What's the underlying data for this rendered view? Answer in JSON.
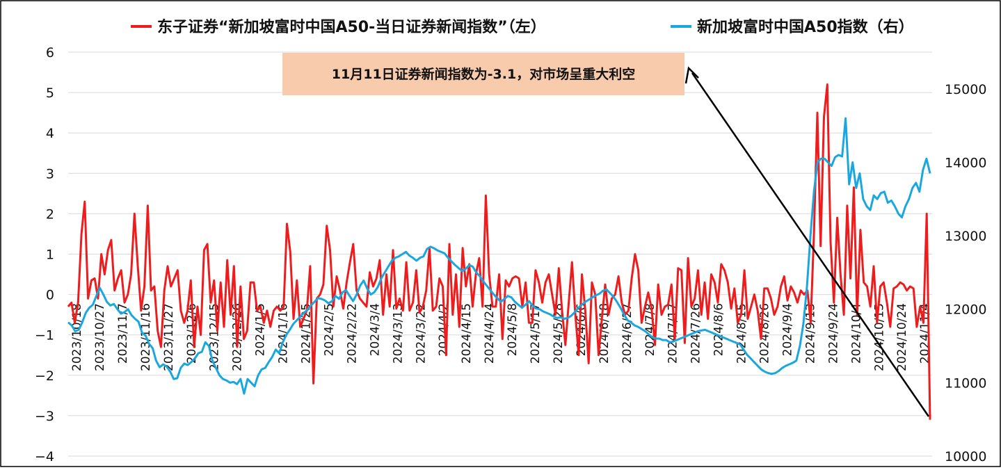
{
  "chart_data": {
    "type": "line",
    "legend": {
      "position": "top"
    },
    "x_tick_labels": [
      "2023/10/18",
      "2023/10/27",
      "2023/11/7",
      "2023/11/16",
      "2023/11/27",
      "2023/12/6",
      "2023/12/15",
      "2023/12/26",
      "2024/1/5",
      "2024/1/16",
      "2024/1/25",
      "2024/2/5",
      "2024/2/22",
      "2024/3/4",
      "2024/3/13",
      "2024/3/22",
      "2024/4/2",
      "2024/4/15",
      "2024/4/24",
      "2024/5/8",
      "2024/5/17",
      "2024/5/28",
      "2024/6/6",
      "2024/6/18",
      "2024/6/27",
      "2024/7/8",
      "2024/7/17",
      "2024/7/26",
      "2024/8/6",
      "2024/8/15",
      "2024/8/26",
      "2024/9/4",
      "2024/9/13",
      "2024/9/24",
      "2024/10/4",
      "2024/10/15",
      "2024/10/24",
      "2024/11/4"
    ],
    "y_left": {
      "min": -4,
      "max": 6,
      "ticks": [
        6,
        5,
        4,
        3,
        2,
        1,
        0,
        -1,
        -2,
        -3,
        -4
      ]
    },
    "y_right": {
      "min": 10000,
      "max": 15500,
      "ticks": [
        15000,
        14000,
        13000,
        12000,
        11000,
        10000
      ]
    },
    "annotation": {
      "text": "11月11日证券新闻指数为-3.1，对市场呈重大利空",
      "target": {
        "x_label": "2024/11/11",
        "value": -3.1
      }
    },
    "series": [
      {
        "name": "东子证券“新加坡富时中国A50-当日证券新闻指数”（左）",
        "color": "#ee1c1c",
        "axis": "left",
        "values": [
          -0.3,
          -0.2,
          -0.7,
          -0.2,
          1.5,
          2.3,
          -0.1,
          0.35,
          0.4,
          -0.1,
          1.0,
          0.5,
          1.1,
          1.35,
          0.1,
          0.4,
          0.6,
          -0.2,
          0.0,
          0.5,
          2.0,
          0.7,
          -0.4,
          0.2,
          2.2,
          0.1,
          0.2,
          -0.9,
          -1.3,
          0.1,
          0.7,
          0.2,
          0.4,
          0.6,
          -0.4,
          -0.7,
          -0.4,
          0.35,
          -1.3,
          -0.3,
          -1.0,
          1.1,
          1.25,
          -0.2,
          0.35,
          -0.9,
          0.3,
          -0.8,
          0.85,
          -0.5,
          0.7,
          -1.3,
          0.2,
          -1.1,
          -0.9,
          0.3,
          0.3,
          -0.4,
          -0.3,
          -0.7,
          -0.4,
          -0.8,
          -0.4,
          -0.3,
          -0.4,
          -0.3,
          1.75,
          1.05,
          -0.6,
          0.35,
          -0.8,
          -0.6,
          -0.4,
          0.7,
          -2.2,
          -0.1,
          0.0,
          0.25,
          1.7,
          1.1,
          -0.3,
          0.45,
          0.1,
          -0.35,
          0.3,
          0.8,
          1.25,
          0.1,
          -0.1,
          -0.2,
          -0.3,
          0.55,
          0.2,
          0.4,
          0.85,
          -0.5,
          0.5,
          -0.3,
          1.1,
          -0.35,
          -0.1,
          -0.4,
          0.8,
          -0.4,
          -0.2,
          0.6,
          -0.45,
          -0.3,
          0.1,
          1.15,
          -0.4,
          -0.3,
          0.4,
          0.2,
          -1.5,
          1.25,
          -0.5,
          0.5,
          -0.8,
          1.15,
          0.2,
          0.75,
          -0.3,
          0.5,
          0.9,
          -0.3,
          2.45,
          0.5,
          -0.3,
          -0.3,
          0.5,
          -1.1,
          0.35,
          0.2,
          0.4,
          0.45,
          0.4,
          -0.3,
          0.3,
          -0.7,
          -0.7,
          0.6,
          0.3,
          -0.2,
          0.3,
          0.5,
          0.0,
          -0.5,
          0.65,
          -0.4,
          -1.25,
          -0.2,
          0.8,
          -0.5,
          -1.5,
          0.5,
          -0.4,
          -1.7,
          0.3,
          0.0,
          -1.5,
          -0.6,
          0.25,
          -0.5,
          -0.1,
          0.0,
          0.45,
          -0.2,
          -0.5,
          -0.4,
          0.4,
          1.0,
          0.6,
          -0.7,
          -0.3,
          0.05,
          -0.35,
          -1.25,
          0.25,
          -0.5,
          -0.3,
          -0.25,
          0.25,
          -1.1,
          0.65,
          0.6,
          -1.2,
          0.9,
          -0.3,
          -0.1,
          0.6,
          -0.5,
          0.3,
          -0.6,
          0.5,
          0.3,
          -0.2,
          0.75,
          0.6,
          0.3,
          -0.35,
          0.15,
          -0.7,
          -0.5,
          0.6,
          -0.6,
          -0.3,
          0.0,
          -0.4,
          -1.1,
          0.15,
          0.15,
          -0.1,
          -0.5,
          -0.3,
          0.2,
          0.45,
          -0.15,
          0.2,
          0.05,
          -0.2,
          0.1,
          0.0,
          0.1,
          -0.7,
          1.55,
          4.5,
          1.2,
          4.4,
          5.2,
          1.3,
          -0.2,
          1.9,
          0.5,
          -0.5,
          2.2,
          0.4,
          2.65,
          -0.5,
          1.6,
          0.3,
          0.2,
          -0.3,
          0.7,
          -0.7,
          0.2,
          0.3,
          -0.2,
          -0.8,
          0.15,
          0.2,
          0.3,
          0.25,
          0.1,
          0.2,
          0.15,
          -0.8,
          -0.3,
          -0.7,
          2.0,
          -3.1
        ]
      },
      {
        "name": "新加坡富时中国A50指数（右）",
        "color": "#1aa7e0",
        "axis": "right",
        "values": [
          11820,
          11780,
          11700,
          11720,
          11820,
          11950,
          12020,
          12060,
          12180,
          12290,
          12200,
          12100,
          12050,
          12070,
          12000,
          11940,
          11960,
          12000,
          11920,
          11870,
          11830,
          11680,
          11640,
          11530,
          11470,
          11300,
          11210,
          11250,
          11220,
          11150,
          11050,
          11060,
          11200,
          11260,
          11240,
          11280,
          11330,
          11400,
          11420,
          11550,
          11500,
          11300,
          11200,
          11100,
          11050,
          11030,
          11000,
          11010,
          10980,
          11050,
          10850,
          11050,
          11000,
          10950,
          11100,
          11180,
          11200,
          11280,
          11350,
          11450,
          11400,
          11550,
          11650,
          11720,
          11800,
          11850,
          11900,
          11950,
          11990,
          12050,
          12100,
          12150,
          12140,
          12120,
          12080,
          12110,
          12180,
          12140,
          12230,
          12260,
          12180,
          12110,
          12200,
          12320,
          12390,
          12280,
          12200,
          12230,
          12300,
          12420,
          12500,
          12580,
          12660,
          12700,
          12720,
          12750,
          12780,
          12730,
          12700,
          12660,
          12700,
          12720,
          12820,
          12850,
          12830,
          12800,
          12780,
          12760,
          12700,
          12650,
          12600,
          12560,
          12520,
          12550,
          12600,
          12580,
          12500,
          12450,
          12380,
          12320,
          12260,
          12200,
          12150,
          12100,
          12140,
          12180,
          12160,
          12100,
          12060,
          12020,
          12060,
          12110,
          12050,
          12010,
          12000,
          11970,
          11950,
          11930,
          11900,
          11880,
          11890,
          11870,
          11880,
          11910,
          11960,
          12020,
          12060,
          12100,
          12130,
          12160,
          12190,
          12210,
          12250,
          12270,
          12220,
          12170,
          12100,
          12020,
          11930,
          11850,
          11820,
          11780,
          11760,
          11730,
          11700,
          11660,
          11620,
          11600,
          11600,
          11580,
          11580,
          11550,
          11560,
          11580,
          11600,
          11620,
          11640,
          11660,
          11680,
          11700,
          11710,
          11720,
          11700,
          11680,
          11660,
          11640,
          11620,
          11600,
          11580,
          11560,
          11540,
          11520,
          11450,
          11380,
          11330,
          11280,
          11230,
          11180,
          11150,
          11130,
          11120,
          11130,
          11160,
          11200,
          11230,
          11250,
          11270,
          11300,
          11500,
          11800,
          12300,
          13000,
          13600,
          14000,
          14050,
          14050,
          14000,
          13950,
          14070,
          14100,
          14080,
          14600,
          13700,
          14000,
          13650,
          13850,
          13500,
          13400,
          13350,
          13550,
          13500,
          13580,
          13600,
          13450,
          13480,
          13400,
          13300,
          13250,
          13400,
          13500,
          13650,
          13720,
          13600,
          13900,
          14050,
          13850
        ]
      }
    ]
  }
}
